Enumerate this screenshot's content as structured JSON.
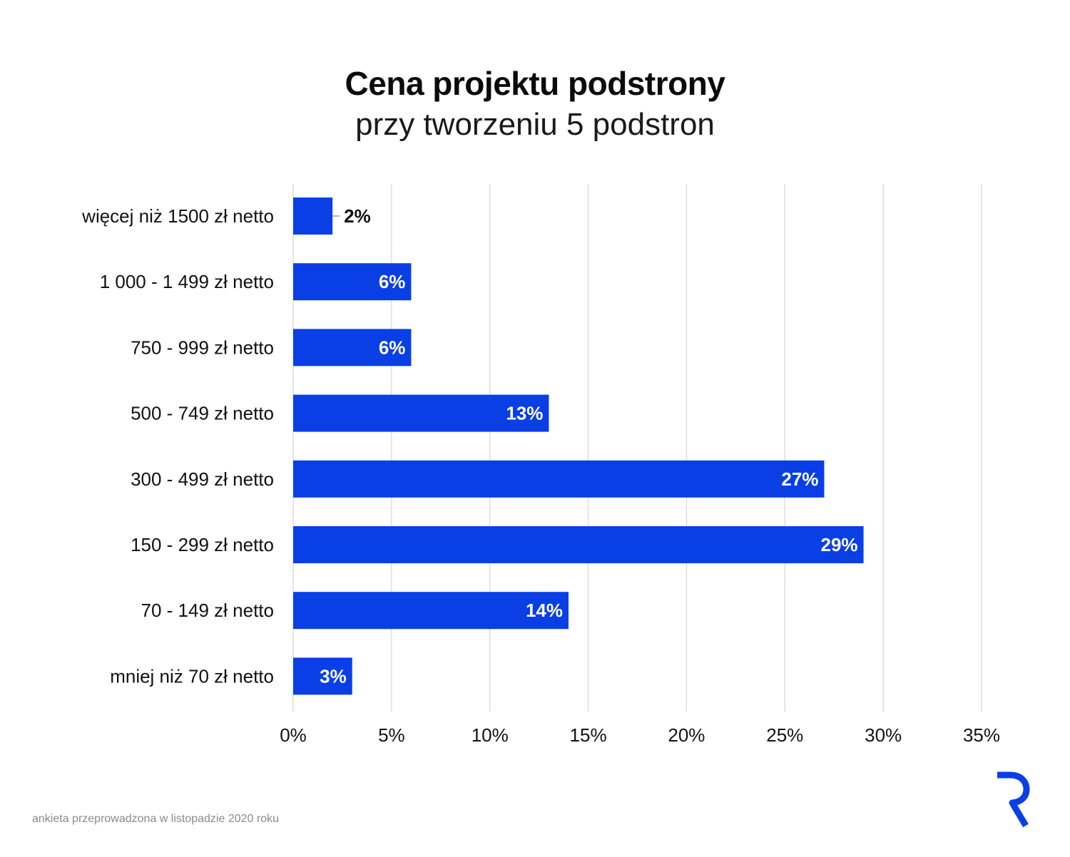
{
  "header": {
    "title": "Cena projektu podstrony",
    "subtitle": "przy tworzeniu 5 podstron"
  },
  "footnote": "ankieta przeprowadzona w listopadzie 2020 roku",
  "logo": {
    "icon": "brand-r-logo",
    "color": "#0a3fe6"
  },
  "colors": {
    "bar": "#0a3fe6",
    "grid": "#dddddd",
    "label_inside": "#ffffff",
    "label_outside": "#111111"
  },
  "chart_data": {
    "type": "bar",
    "orientation": "horizontal",
    "categories": [
      "więcej niż 1500 zł netto",
      "1 000 - 1 499 zł netto",
      "750 - 999 zł netto",
      "500 - 749 zł netto",
      "300 - 499 zł netto",
      "150 - 299 zł netto",
      "70 - 149 zł netto",
      "mniej niż 70 zł netto"
    ],
    "values": [
      2,
      6,
      6,
      13,
      27,
      29,
      14,
      3
    ],
    "value_labels": [
      "2%",
      "6%",
      "6%",
      "13%",
      "27%",
      "29%",
      "14%",
      "3%"
    ],
    "xlim": [
      0,
      35
    ],
    "xticks": [
      0,
      5,
      10,
      15,
      20,
      25,
      30,
      35
    ],
    "xtick_labels": [
      "0%",
      "5%",
      "10%",
      "15%",
      "20%",
      "25%",
      "30%",
      "35%"
    ],
    "grid": true
  }
}
